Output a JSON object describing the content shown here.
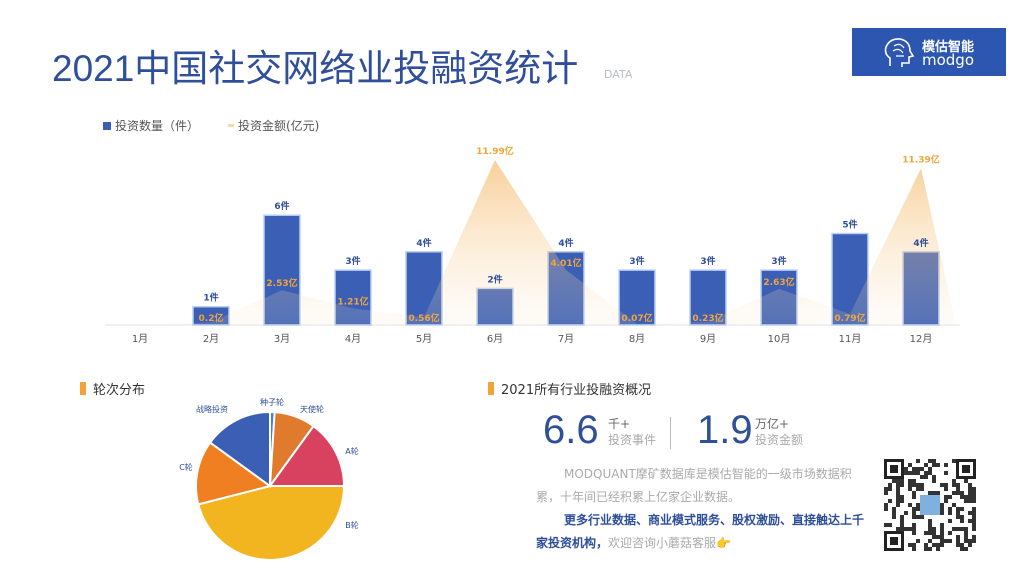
{
  "header": {
    "title": "2021中国社交网络业投融资统计",
    "subtitle": "DATA"
  },
  "logo": {
    "cn": "模估智能",
    "en": "modgo"
  },
  "legend": {
    "count_label": "投资数量（件）",
    "amount_label": "投资金额(亿元)"
  },
  "colors": {
    "bar": "#3a5fb5",
    "area": "#f2a43a",
    "title": "#2f4f9a",
    "accent": "#f2a43a"
  },
  "chart_data": [
    {
      "type": "bar+area",
      "categories": [
        "1月",
        "2月",
        "3月",
        "4月",
        "5月",
        "6月",
        "7月",
        "8月",
        "9月",
        "10月",
        "11月",
        "12月"
      ],
      "series": [
        {
          "name": "投资数量（件）",
          "type": "bar",
          "values": [
            0,
            1,
            6,
            3,
            4,
            2,
            4,
            3,
            3,
            3,
            5,
            4
          ],
          "labels": [
            "",
            "1件",
            "6件",
            "3件",
            "4件",
            "2件",
            "4件",
            "3件",
            "3件",
            "3件",
            "5件",
            "4件"
          ]
        },
        {
          "name": "投资金额(亿元)",
          "type": "area",
          "values": [
            0,
            0.2,
            2.53,
            1.21,
            0.56,
            11.99,
            4.01,
            0.07,
            0.23,
            2.63,
            0.79,
            11.39
          ],
          "labels": [
            "",
            "0.2亿",
            "2.53亿",
            "1.21亿",
            "0.56亿",
            "11.99亿",
            "4.01亿",
            "0.07亿",
            "0.23亿",
            "2.63亿",
            "0.79亿",
            "11.39亿"
          ]
        }
      ],
      "legend_position": "top-left",
      "grid": false
    },
    {
      "type": "pie",
      "title": "轮次分布",
      "slices": [
        {
          "label": "种子轮",
          "value": 1,
          "color": "#4a7bc8"
        },
        {
          "label": "天使轮",
          "value": 9,
          "color": "#e07b2e"
        },
        {
          "label": "A轮",
          "value": 15,
          "color": "#d9425e"
        },
        {
          "label": "B轮",
          "value": 46,
          "color": "#f2b51f"
        },
        {
          "label": "C轮",
          "value": 14,
          "color": "#f07f22"
        },
        {
          "label": "战略投资",
          "value": 15,
          "color": "#3a5fb5"
        }
      ]
    }
  ],
  "overview": {
    "title": "2021所有行业投融资概况",
    "events_num": "6.6",
    "events_unit": "千+",
    "events_label": "投资事件",
    "amount_num": "1.9",
    "amount_unit": "万亿+",
    "amount_label": "投资金额",
    "para1": "MODQUANT摩矿数据库是模估智能的一级市场数据积累，十年间已经积累上亿家企业数据。",
    "para2_bold": "更多行业数据、商业模式服务、股权激励、直接触达上千家投资机构，",
    "para2_rest": "欢迎咨询小蘑菇客服👉"
  },
  "qr_icon": "qr-code-icon"
}
